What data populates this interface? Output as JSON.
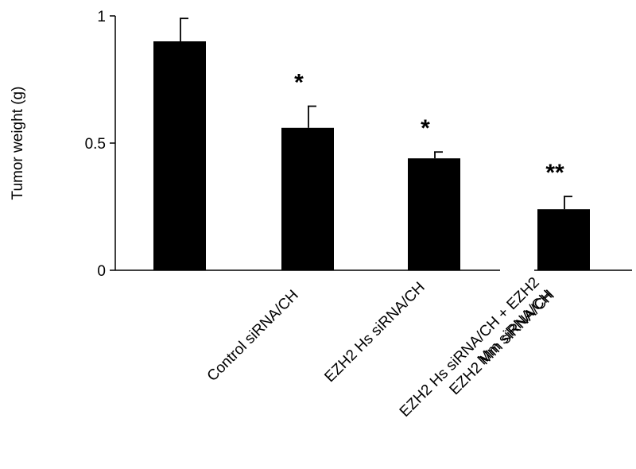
{
  "chart_data": {
    "type": "bar",
    "ylabel": "Tumor weight (g)",
    "xlabel": "",
    "ylim": [
      0,
      1
    ],
    "yticks": [
      {
        "value": 0,
        "label": "0"
      },
      {
        "value": 0.5,
        "label": "0.5"
      },
      {
        "value": 1,
        "label": "1"
      }
    ],
    "categories": [
      [
        "Control siRNA/CH"
      ],
      [
        "EZH2 Hs siRNA/CH"
      ],
      [
        "EZH2 Mm siRNA/CH"
      ],
      [
        "EZH2 Hs siRNA/CH + EZH2",
        "Mm siRNA/CH"
      ]
    ],
    "values": [
      0.9,
      0.56,
      0.44,
      0.24
    ],
    "errors": [
      0.09,
      0.085,
      0.025,
      0.05
    ],
    "significance": [
      "",
      "*",
      "*",
      "**"
    ],
    "bar_color": "#000000",
    "grid": false
  }
}
